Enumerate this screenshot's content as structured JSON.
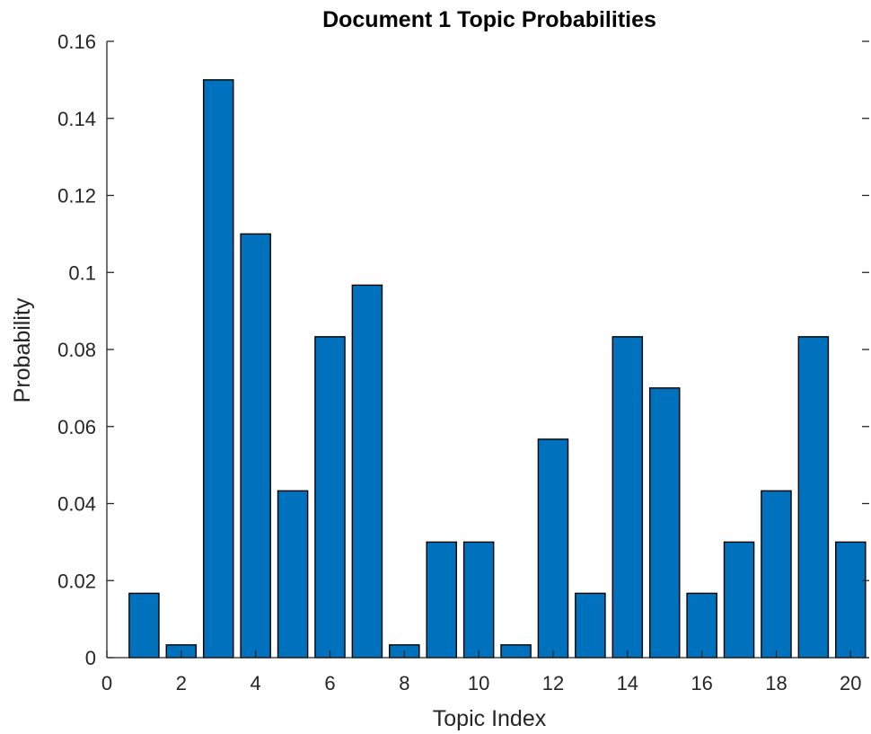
{
  "chart_data": {
    "type": "bar",
    "title": "Document 1 Topic Probabilities",
    "xlabel": "Topic Index",
    "ylabel": "Probability",
    "categories": [
      1,
      2,
      3,
      4,
      5,
      6,
      7,
      8,
      9,
      10,
      11,
      12,
      13,
      14,
      15,
      16,
      17,
      18,
      19,
      20
    ],
    "values": [
      0.0167,
      0.0033,
      0.15,
      0.11,
      0.0433,
      0.0833,
      0.0967,
      0.0033,
      0.03,
      0.03,
      0.0033,
      0.0567,
      0.0167,
      0.0833,
      0.07,
      0.0167,
      0.03,
      0.0433,
      0.0833,
      0.03
    ],
    "xlim": [
      0,
      20.5
    ],
    "ylim": [
      0,
      0.16
    ],
    "xticks": [
      0,
      2,
      4,
      6,
      8,
      10,
      12,
      14,
      16,
      18,
      20
    ],
    "yticks": [
      0,
      0.02,
      0.04,
      0.06,
      0.08,
      0.1,
      0.12,
      0.14,
      0.16
    ],
    "xtick_labels": [
      "0",
      "2",
      "4",
      "6",
      "8",
      "10",
      "12",
      "14",
      "16",
      "18",
      "20"
    ],
    "ytick_labels": [
      "0",
      "0.02",
      "0.04",
      "0.06",
      "0.08",
      "0.1",
      "0.12",
      "0.14",
      "0.16"
    ],
    "bar_color": "#0072BD",
    "grid": false,
    "legend": "none"
  }
}
